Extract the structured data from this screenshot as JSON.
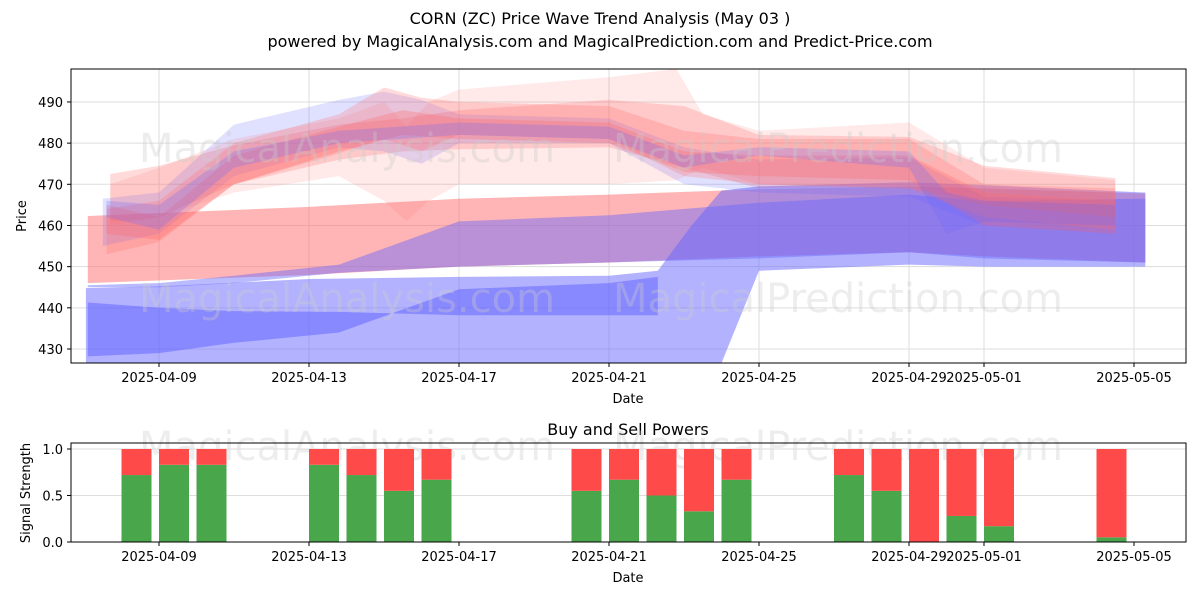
{
  "header": {
    "title": "CORN (ZC) Price Wave Trend Analysis (May 03 )",
    "subtitle": "powered by MagicalAnalysis.com and MagicalPrediction.com and Predict-Price.com"
  },
  "watermarks": [
    "MagicalAnalysis.com",
    "MagicalPrediction.com"
  ],
  "colors": {
    "buy": "#4aa64a",
    "sell": "#ff4a4a",
    "red_band": "#ff6b6b",
    "blue_band": "#6666ff",
    "grid": "#dddddd"
  },
  "chart_data": [
    {
      "type": "area",
      "title": "",
      "xlabel": "Date",
      "ylabel": "Price",
      "xlim": [
        "2025-04-06.65",
        "2025-05-06.4"
      ],
      "ylim": [
        426.6,
        498
      ],
      "grid": true,
      "x_ticks": [
        "2025-04-09",
        "2025-04-13",
        "2025-04-17",
        "2025-04-21",
        "2025-04-25",
        "2025-04-29",
        "2025-05-01",
        "2025-05-05"
      ],
      "y_ticks": [
        430,
        440,
        450,
        460,
        470,
        480,
        490
      ],
      "x_tick_day_offsets": [
        0,
        4,
        8,
        12,
        16,
        20,
        22,
        26
      ],
      "date_origin": "2025-04-09",
      "bands": [
        {
          "name": "red-long-band",
          "color": "red",
          "opacity": 0.5,
          "x": [
            -1.9,
            4,
            8,
            12,
            16,
            20,
            22,
            26.3
          ],
          "upper": [
            462.3,
            464.5,
            466.5,
            467.5,
            468.8,
            469.5,
            469,
            467.8
          ],
          "lower": [
            446,
            448,
            450,
            451,
            452.5,
            453.5,
            452.5,
            451
          ]
        },
        {
          "name": "purple-mid-band",
          "color": "blue",
          "opacity": 0.45,
          "x": [
            -1.9,
            0,
            2,
            4.8,
            8,
            12,
            16,
            20,
            22,
            26.3
          ],
          "upper": [
            445.5,
            446,
            447.8,
            450.5,
            461,
            462.5,
            465.5,
            467.5,
            466,
            466.5
          ],
          "lower": [
            445,
            445,
            446,
            448.5,
            450,
            451,
            452,
            453.5,
            452,
            451
          ]
        },
        {
          "name": "blue-lower-band",
          "color": "blue",
          "opacity": 0.5,
          "x": [
            -1.95,
            0,
            4,
            8,
            12,
            13.3,
            14.2,
            15,
            16,
            20,
            22,
            26.3
          ],
          "upper": [
            444.8,
            445.2,
            447,
            447.5,
            447.8,
            449,
            460,
            468.5,
            469.5,
            470.5,
            469.8,
            468
          ],
          "lower": [
            426.6,
            426.6,
            426.6,
            426.6,
            426.6,
            426.6,
            426.6,
            426.6,
            449,
            450.5,
            450,
            450
          ]
        },
        {
          "name": "blue-deep-band",
          "color": "blue",
          "opacity": 0.55,
          "x": [
            -1.9,
            0,
            2,
            4.8,
            8,
            12,
            13.3
          ],
          "upper": [
            441.3,
            440,
            439.2,
            439,
            438.2,
            438.2,
            438.2
          ],
          "lower": [
            428.2,
            429,
            431.5,
            434,
            444.5,
            446,
            447.5
          ]
        },
        {
          "name": "wave-band-1",
          "color": "red",
          "opacity": 0.25,
          "x": [
            -1.3,
            0,
            2,
            4.8,
            6.5,
            8,
            12,
            14,
            16,
            20,
            22,
            25.5
          ],
          "upper": [
            472.5,
            474.5,
            479.5,
            484.5,
            486,
            488,
            490.5,
            489,
            482,
            481.5,
            474.5,
            471.5
          ],
          "lower": [
            461,
            462,
            470,
            476,
            478,
            478.5,
            479,
            474,
            469,
            469.5,
            465,
            462
          ]
        },
        {
          "name": "wave-band-2",
          "color": "blue",
          "opacity": 0.2,
          "x": [
            -1.5,
            0,
            2,
            4.8,
            6,
            7,
            8,
            12,
            14,
            16,
            20,
            22,
            25.5
          ],
          "upper": [
            466.5,
            468,
            484.5,
            490.5,
            492.5,
            490.5,
            487,
            486,
            479,
            476,
            476.5,
            467,
            466
          ],
          "lower": [
            455,
            458,
            472,
            479,
            478,
            475,
            480,
            480,
            470,
            468,
            467,
            460,
            458
          ]
        },
        {
          "name": "wave-band-3",
          "color": "red",
          "opacity": 0.25,
          "x": [
            -1.4,
            0,
            2,
            4.8,
            6,
            7,
            8,
            12,
            14,
            16,
            20,
            22,
            25.5
          ],
          "upper": [
            464,
            466,
            480,
            487,
            493.5,
            491,
            490,
            489,
            483,
            481,
            481,
            470,
            469
          ],
          "lower": [
            453,
            456,
            470,
            477.5,
            481,
            478,
            482,
            481,
            472,
            470,
            469,
            462,
            459
          ]
        },
        {
          "name": "wave-band-4",
          "color": "red",
          "opacity": 0.3,
          "x": [
            -1.4,
            0,
            2,
            4.8,
            6.5,
            8,
            12,
            14,
            16,
            20,
            22,
            25.5
          ],
          "upper": [
            465,
            462,
            477,
            484,
            488,
            486,
            485,
            478,
            477,
            477,
            468,
            466
          ],
          "lower": [
            458,
            456.5,
            470,
            478,
            482,
            481,
            480,
            473,
            472,
            471,
            460,
            458
          ]
        },
        {
          "name": "wave-band-5",
          "color": "red",
          "opacity": 0.15,
          "x": [
            -1.3,
            0,
            2,
            4.8,
            6,
            6.6,
            7.2,
            8,
            12,
            13.8,
            14.5,
            16,
            20,
            22,
            25.5
          ],
          "upper": [
            470,
            474,
            481,
            486,
            490,
            484,
            490,
            493,
            496,
            498,
            487,
            483,
            485,
            474,
            471
          ],
          "lower": [
            460,
            462,
            468,
            472,
            466,
            461,
            466,
            470,
            470,
            471,
            474,
            470,
            469,
            465,
            462
          ]
        },
        {
          "name": "wave-band-6",
          "color": "blue",
          "opacity": 0.25,
          "x": [
            -1.4,
            0,
            2,
            4.8,
            8,
            12,
            14,
            16,
            20,
            21,
            22,
            25.5
          ],
          "upper": [
            466,
            465,
            478,
            483,
            485,
            484,
            477,
            479,
            478,
            468,
            466,
            465
          ],
          "lower": [
            462,
            459,
            474,
            480,
            482,
            481,
            474,
            477,
            474,
            458,
            461,
            460
          ]
        }
      ]
    },
    {
      "type": "bar",
      "title": "Buy and Sell Powers",
      "xlabel": "Date",
      "ylabel": "Signal Strength",
      "ylim": [
        0,
        1.05
      ],
      "y_ticks": [
        "0.0",
        "0.5",
        "1.0"
      ],
      "x_ticks": [
        "2025-04-09",
        "2025-04-13",
        "2025-04-17",
        "2025-04-21",
        "2025-04-25",
        "2025-04-29",
        "2025-05-01",
        "2025-05-05"
      ],
      "grid": true,
      "categories": [
        "2025-04-08",
        "2025-04-09",
        "2025-04-10",
        "2025-04-13",
        "2025-04-14",
        "2025-04-15",
        "2025-04-16",
        "2025-04-20",
        "2025-04-21",
        "2025-04-22",
        "2025-04-23",
        "2025-04-24",
        "2025-04-27",
        "2025-04-28",
        "2025-04-29",
        "2025-04-30",
        "2025-05-01",
        "2025-05-04"
      ],
      "day_index": [
        -1,
        0,
        1,
        4,
        5,
        6,
        7,
        11,
        12,
        13,
        14,
        15,
        18,
        19,
        20,
        21,
        22,
        25
      ],
      "series": [
        {
          "name": "Buy",
          "values": [
            0.72,
            0.83,
            0.83,
            0.83,
            0.72,
            0.55,
            0.67,
            0.55,
            0.67,
            0.5,
            0.33,
            0.67,
            0.72,
            0.55,
            0.0,
            0.28,
            0.17,
            0.05
          ]
        },
        {
          "name": "Sell",
          "values": [
            0.28,
            0.17,
            0.17,
            0.17,
            0.28,
            0.45,
            0.33,
            0.45,
            0.33,
            0.5,
            0.67,
            0.33,
            0.28,
            0.45,
            1.0,
            0.72,
            0.83,
            0.95
          ]
        }
      ]
    }
  ]
}
